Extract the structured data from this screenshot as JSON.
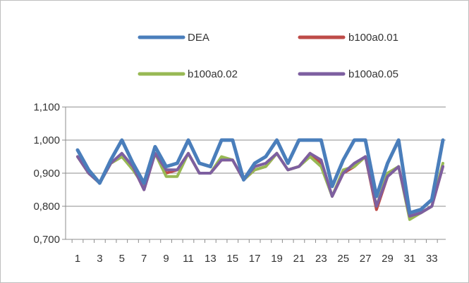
{
  "chart_data": {
    "type": "line",
    "title": "",
    "xlabel": "",
    "ylabel": "",
    "x": [
      1,
      2,
      3,
      4,
      5,
      6,
      7,
      8,
      9,
      10,
      11,
      12,
      13,
      14,
      15,
      16,
      17,
      18,
      19,
      20,
      21,
      22,
      23,
      24,
      25,
      26,
      27,
      28,
      29,
      30,
      31,
      32,
      33,
      34
    ],
    "x_tick_labels": [
      "1",
      "3",
      "5",
      "7",
      "9",
      "11",
      "13",
      "15",
      "17",
      "19",
      "21",
      "23",
      "25",
      "27",
      "29",
      "31",
      "33"
    ],
    "y_tick_labels": [
      "0,700",
      "0,800",
      "0,900",
      "1,000",
      "1,100"
    ],
    "ylim": [
      0.7,
      1.1
    ],
    "y_ticks": [
      0.7,
      0.8,
      0.9,
      1.0,
      1.1
    ],
    "grid": true,
    "legend_position": "top",
    "series": [
      {
        "name": "DEA",
        "color": "#4a7ebb",
        "values": [
          0.97,
          0.91,
          0.87,
          0.94,
          1.0,
          0.93,
          0.87,
          0.98,
          0.92,
          0.93,
          1.0,
          0.93,
          0.92,
          1.0,
          1.0,
          0.88,
          0.93,
          0.95,
          1.0,
          0.93,
          1.0,
          1.0,
          1.0,
          0.86,
          0.94,
          1.0,
          1.0,
          0.83,
          0.93,
          1.0,
          0.78,
          0.79,
          0.82,
          1.0
        ]
      },
      {
        "name": "b100a0.01",
        "color": "#be4b48",
        "values": [
          0.95,
          0.9,
          0.87,
          0.93,
          0.95,
          0.92,
          0.85,
          0.96,
          0.9,
          0.91,
          0.96,
          0.9,
          0.9,
          0.94,
          0.94,
          0.88,
          0.91,
          0.92,
          0.96,
          0.91,
          0.92,
          0.96,
          0.93,
          0.83,
          0.9,
          0.92,
          0.95,
          0.79,
          0.89,
          0.92,
          0.77,
          0.78,
          0.8,
          0.92
        ]
      },
      {
        "name": "b100a0.02",
        "color": "#98b954",
        "values": [
          0.95,
          0.9,
          0.87,
          0.93,
          0.95,
          0.91,
          0.86,
          0.96,
          0.89,
          0.89,
          0.96,
          0.9,
          0.9,
          0.95,
          0.94,
          0.88,
          0.91,
          0.92,
          0.96,
          0.91,
          0.92,
          0.95,
          0.92,
          0.83,
          0.91,
          0.92,
          0.95,
          0.8,
          0.9,
          0.92,
          0.76,
          0.78,
          0.8,
          0.93
        ]
      },
      {
        "name": "b100a0.05",
        "color": "#7d5fa0",
        "values": [
          0.95,
          0.9,
          0.87,
          0.93,
          0.96,
          0.92,
          0.85,
          0.96,
          0.91,
          0.91,
          0.96,
          0.9,
          0.9,
          0.94,
          0.94,
          0.88,
          0.92,
          0.93,
          0.96,
          0.91,
          0.92,
          0.96,
          0.94,
          0.83,
          0.9,
          0.93,
          0.95,
          0.8,
          0.89,
          0.92,
          0.77,
          0.78,
          0.8,
          0.92
        ]
      }
    ]
  }
}
